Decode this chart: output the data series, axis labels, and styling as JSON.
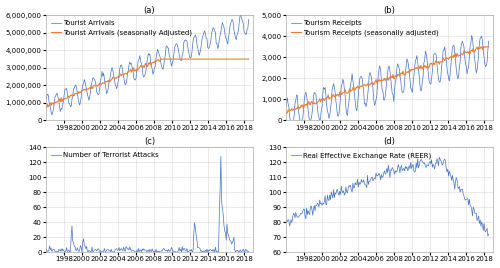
{
  "panel_a": {
    "title": "(a)",
    "legend": [
      "Tourist Arrivals",
      "Tourist Arrivals (seasonally Adjusted)"
    ],
    "line1_color": "#4472C4",
    "line2_color": "#ED7D31",
    "ylim": [
      0,
      6000000
    ],
    "yticks": [
      0,
      1000000,
      2000000,
      3000000,
      4000000,
      5000000,
      6000000
    ],
    "ytick_labels": [
      "0",
      "1,000,000",
      "2,000,000",
      "3,000,000",
      "4,000,000",
      "5,000,000",
      "6,000,000"
    ]
  },
  "panel_b": {
    "title": "(b)",
    "legend": [
      "Tourism Receipts",
      "Tourism Receipts (seasonally adjusted)"
    ],
    "line1_color": "#4472C4",
    "line2_color": "#ED7D31",
    "ylim": [
      0,
      5000
    ],
    "yticks": [
      0,
      1000,
      2000,
      3000,
      4000,
      5000
    ],
    "ytick_labels": [
      "0",
      "1,000",
      "2,000",
      "3,000",
      "4,000",
      "5,000"
    ]
  },
  "panel_c": {
    "title": "(c)",
    "legend": [
      "Number of Terrorist Attacks"
    ],
    "line1_color": "#4472C4",
    "ylim": [
      0,
      140
    ],
    "yticks": [
      0,
      20,
      40,
      60,
      80,
      100,
      120,
      140
    ],
    "ytick_labels": [
      "0",
      "20",
      "40",
      "60",
      "80",
      "100",
      "120",
      "140"
    ]
  },
  "panel_d": {
    "title": "(d)",
    "legend": [
      "Real Effective Exchange Rate (REER)"
    ],
    "line1_color": "#4472C4",
    "ylim": [
      60,
      130
    ],
    "yticks": [
      60,
      70,
      80,
      90,
      100,
      110,
      120,
      130
    ],
    "ytick_labels": [
      "60",
      "70",
      "80",
      "90",
      "100",
      "110",
      "120",
      "130"
    ]
  },
  "xticklabels": [
    "1998",
    "2000",
    "2002",
    "2004",
    "2006",
    "2008",
    "2010",
    "2012",
    "2014",
    "2016",
    "2018"
  ],
  "background_color": "#ffffff",
  "grid_color": "#d0d0d0",
  "fontsize_title": 6,
  "fontsize_tick": 5,
  "fontsize_legend": 5
}
